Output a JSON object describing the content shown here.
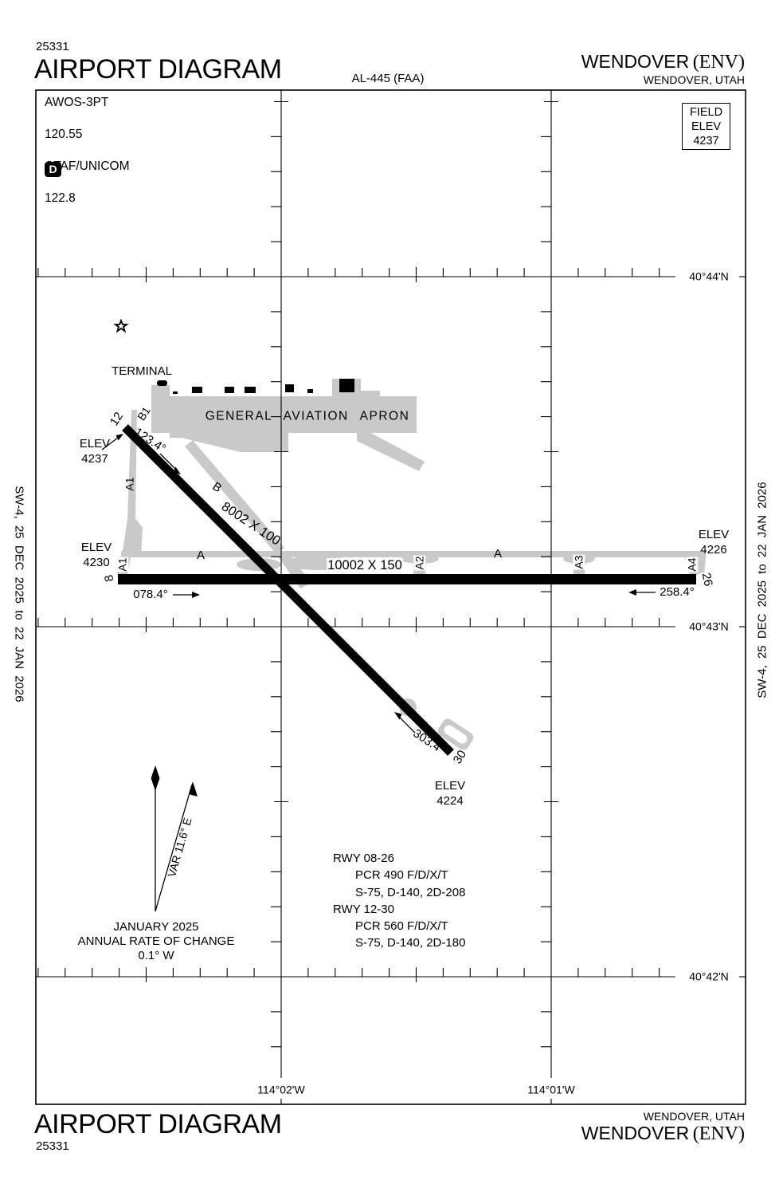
{
  "header": {
    "chart_number": "25331",
    "title": "AIRPORT DIAGRAM",
    "procedure_id": "AL-445 (FAA)",
    "airport_name": "WENDOVER",
    "airport_ident": "(ENV)",
    "city_state": "WENDOVER, UTAH"
  },
  "footer": {
    "chart_number": "25331",
    "title": "AIRPORT DIAGRAM",
    "airport_name": "WENDOVER",
    "airport_ident": "(ENV)",
    "city_state": "WENDOVER, UTAH"
  },
  "edition": {
    "left": "SW-4, 25 DEC 2025 to 22 JAN 2026",
    "right": "SW-4, 25 DEC 2025 to 22 JAN 2026"
  },
  "comms": {
    "awos_label": "AWOS-3PT",
    "awos_freq": "120.55",
    "ctaf_label": "CTAF/UNICOM",
    "ctaf_freq": "122.8",
    "diagram_symbol": "D"
  },
  "field_elev": {
    "l1": "FIELD",
    "l2": "ELEV",
    "l3": "4237"
  },
  "graticule": {
    "lat": [
      "40°44'N",
      "40°43'N",
      "40°42'N"
    ],
    "lon": [
      "114°02'W",
      "114°01'W"
    ]
  },
  "airport": {
    "terminal": "TERMINAL",
    "apron": "GENERAL AVIATION APRON",
    "runway_12_30": {
      "num_12": "12",
      "num_30": "30",
      "hdg_12": "123.4°",
      "hdg_30": "303.4°",
      "dim": "8002 X 100"
    },
    "runway_08_26": {
      "num_8": "8",
      "num_26": "26",
      "hdg_08": "078.4°",
      "hdg_26": "258.4°",
      "dim": "10002 X 150"
    },
    "taxiways": {
      "b1": "B1",
      "a1_upper": "A1",
      "b": "B",
      "a_west": "A",
      "a1_lower": "A1",
      "a2": "A2",
      "a_east": "A",
      "a3": "A3",
      "a4": "A4"
    },
    "elevations": {
      "rwy12": {
        "label": "ELEV",
        "value": "4237"
      },
      "rwy08": {
        "label": "ELEV",
        "value": "4230"
      },
      "rwy26": {
        "label": "ELEV",
        "value": "4226"
      },
      "rwy30": {
        "label": "ELEV",
        "value": "4224"
      }
    }
  },
  "variation": {
    "arrow_label": "VAR 11.6° E",
    "date": "JANUARY 2025",
    "rate_line1": "ANNUAL RATE OF CHANGE",
    "rate_line2": "0.1° W"
  },
  "runway_data": {
    "lines": [
      "RWY 08-26",
      "PCR 490 F/D/X/T",
      "S-75, D-140, 2D-208",
      "RWY 12-30",
      "PCR 560 F/D/X/T",
      "S-75, D-140, 2D-180"
    ]
  }
}
